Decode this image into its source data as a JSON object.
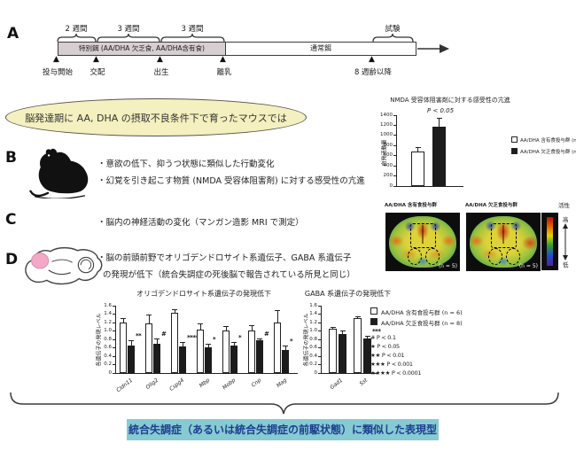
{
  "colors": {
    "ellipse_fill": "#f4f0bf",
    "special_diet_fill": "#d6ced0",
    "conclusion_bg": "#87cad2",
    "conclusion_text": "#1e3e91",
    "bar_white": "#ffffff",
    "bar_black": "#1c1c1c"
  },
  "section_a": {
    "label": "A",
    "marker": "▲",
    "brackets": [
      "2 週間",
      "3 週間",
      "3 週間",
      "試験"
    ],
    "special_diet": "特別餌 (AA/DHA 欠乏食, AA/DHA含有食)",
    "normal_diet": "通常餌",
    "milestones": [
      "投与開始",
      "交配",
      "出生",
      "離乳",
      "8 週齢以降"
    ]
  },
  "ellipse": {
    "text": "脳発達期に AA, DHA の摂取不良条件下で育ったマウスでは"
  },
  "section_b": {
    "label": "B",
    "bullet1": "・意欲の低下、抑うつ状態に類似した行動変化",
    "bullet2": "・幻覚を引き起こす物質 (NMDA 受容体阻害剤) に対する感受性の亢進"
  },
  "section_c": {
    "label": "C",
    "bullet": "・脳内の神経活動の変化（マンガン造影 MRI で測定）"
  },
  "section_d": {
    "label": "D",
    "bullet1": "・脳の前頭前野でオリゴデンドロサイト系遺伝子、GABA 系遺伝子",
    "bullet2": "の発現が低下（統合失調症の死後脳で報告されている所見と同じ）"
  },
  "nmda_legend": {
    "control": "AA/DHA 含有食投与群 (n = 12)",
    "deficient": "AA/DHA 欠乏食投与群 (n = 12)"
  },
  "mri": {
    "left_label": "AA/DHA 含有食投与群",
    "right_label": "AA/DHA 欠乏食投与群",
    "n_label": "(n = 5)",
    "scale_title": "活性",
    "scale_high": "高",
    "scale_low": "低"
  },
  "d_legend": {
    "control": "AA/DHA 含有食投与群 (n = 6)",
    "deficient": "AA/DHA 欠乏食投与群 (n = 8)",
    "sig": [
      "# P < 0.1",
      "★ P < 0.05",
      "★★ P < 0.01",
      "★★★ P < 0.001",
      "★★★★ P < 0.0001"
    ]
  },
  "conclusion": {
    "text": "統合失調症（あるいは統合失調症の前駆状態）に類似した表現型"
  },
  "chart_data": [
    {
      "id": "nmda",
      "type": "bar",
      "title": "NMDA 受容体阻害剤に対する感受性の亢進",
      "annotation": "P < 0.05",
      "ylabel": "自発活動量",
      "ylim": [
        0,
        1400
      ],
      "ytick_step": 200,
      "grid": false,
      "legend_position": "right",
      "categories": [
        ""
      ],
      "series": [
        {
          "name": "AA/DHA 含有食投与群 (n = 12)",
          "values": [
            690
          ],
          "errors": [
            80
          ],
          "color": "#ffffff"
        },
        {
          "name": "AA/DHA 欠乏食投与群 (n = 12)",
          "values": [
            1180
          ],
          "errors": [
            160
          ],
          "color": "#1c1c1c"
        }
      ],
      "sig": [
        ""
      ]
    },
    {
      "id": "oligo",
      "type": "bar",
      "title": "オリゴデンドロサイト系遺伝子の発現低下",
      "ylabel": "各遺伝子の発現レベル",
      "ylim": [
        0,
        1.6
      ],
      "ytick_step": 0.2,
      "grid": false,
      "categories": [
        "Cldn11",
        "Olig2",
        "Cspg4",
        "Mbp",
        "Mobp",
        "Cnp",
        "Mag"
      ],
      "series": [
        {
          "name": "AA/DHA 含有食投与群 (n = 6)",
          "values": [
            1.21,
            1.17,
            1.44,
            1.04,
            1.02,
            1.02,
            1.19
          ],
          "errors": [
            0.1,
            0.22,
            0.08,
            0.13,
            0.1,
            0.12,
            0.3
          ],
          "color": "#ffffff"
        },
        {
          "name": "AA/DHA 欠乏食投与群 (n = 8)",
          "values": [
            0.65,
            0.7,
            0.63,
            0.62,
            0.66,
            0.78,
            0.54
          ],
          "errors": [
            0.12,
            0.12,
            0.1,
            0.07,
            0.07,
            0.04,
            0.12
          ],
          "color": "#1c1c1c"
        }
      ],
      "sig": [
        "**",
        "#",
        "****",
        "*",
        "*",
        "#",
        "*"
      ]
    },
    {
      "id": "gaba",
      "type": "bar",
      "title": "GABA 系遺伝子の発現低下",
      "ylabel": "各遺伝子の発現レベル",
      "ylim": [
        0,
        1.6
      ],
      "ytick_step": 0.2,
      "grid": false,
      "categories": [
        "Gad1",
        "Sst"
      ],
      "series": [
        {
          "name": "AA/DHA 含有食投与群 (n = 6)",
          "values": [
            1.05,
            1.3
          ],
          "errors": [
            0.05,
            0.05
          ],
          "color": "#ffffff"
        },
        {
          "name": "AA/DHA 欠乏食投与群 (n = 8)",
          "values": [
            0.92,
            0.82
          ],
          "errors": [
            0.1,
            0.07
          ],
          "color": "#1c1c1c"
        }
      ],
      "sig": [
        "",
        "***"
      ]
    }
  ]
}
